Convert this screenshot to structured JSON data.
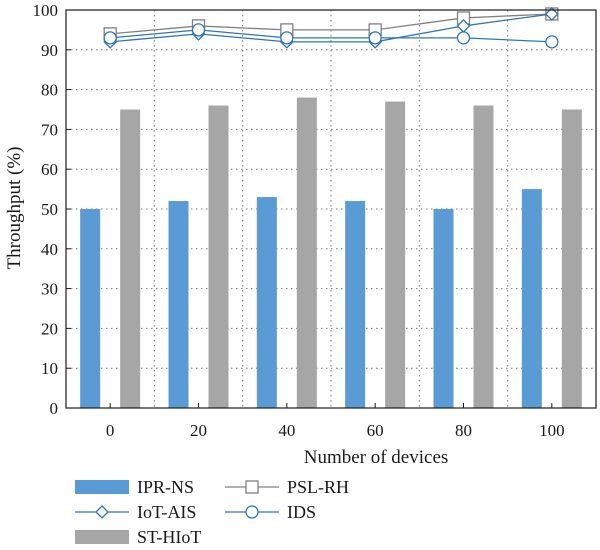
{
  "chart_data": {
    "type": "bar",
    "xlabel": "Number of devices",
    "ylabel": "Throughput (%)",
    "ylim": [
      0,
      100
    ],
    "yticks": [
      0,
      10,
      20,
      30,
      40,
      50,
      60,
      70,
      80,
      90,
      100
    ],
    "categories": [
      "0",
      "20",
      "40",
      "60",
      "80",
      "100"
    ],
    "grid": "dotted",
    "legend_position": "bottom",
    "bar_series": [
      {
        "name": "IPR-NS",
        "color": "#5b9bd5",
        "values": [
          50,
          52,
          53,
          52,
          50,
          55
        ]
      },
      {
        "name": "ST-HIoT",
        "color": "#a6a6a6",
        "values": [
          75,
          76,
          78,
          77,
          76,
          75
        ]
      }
    ],
    "line_series": [
      {
        "name": "PSL-RH",
        "color": "#808080",
        "marker": "square",
        "values": [
          94,
          96,
          95,
          95,
          98,
          99
        ]
      },
      {
        "name": "IoT-AIS",
        "color": "#2e75b6",
        "marker": "diamond",
        "values": [
          92,
          94,
          92,
          92,
          96,
          99
        ]
      },
      {
        "name": "IDS",
        "color": "#2e75b6",
        "marker": "circle",
        "values": [
          93,
          95,
          93,
          93,
          93,
          92
        ]
      }
    ],
    "legend": [
      {
        "label": "IPR-NS",
        "series": "IPR-NS",
        "kind": "bar"
      },
      {
        "label": "PSL-RH",
        "series": "PSL-RH",
        "kind": "line"
      },
      {
        "label": "IoT-AIS",
        "series": "IoT-AIS",
        "kind": "line"
      },
      {
        "label": "IDS",
        "series": "IDS",
        "kind": "line"
      },
      {
        "label": "ST-HIoT",
        "series": "ST-HIoT",
        "kind": "bar"
      }
    ]
  }
}
